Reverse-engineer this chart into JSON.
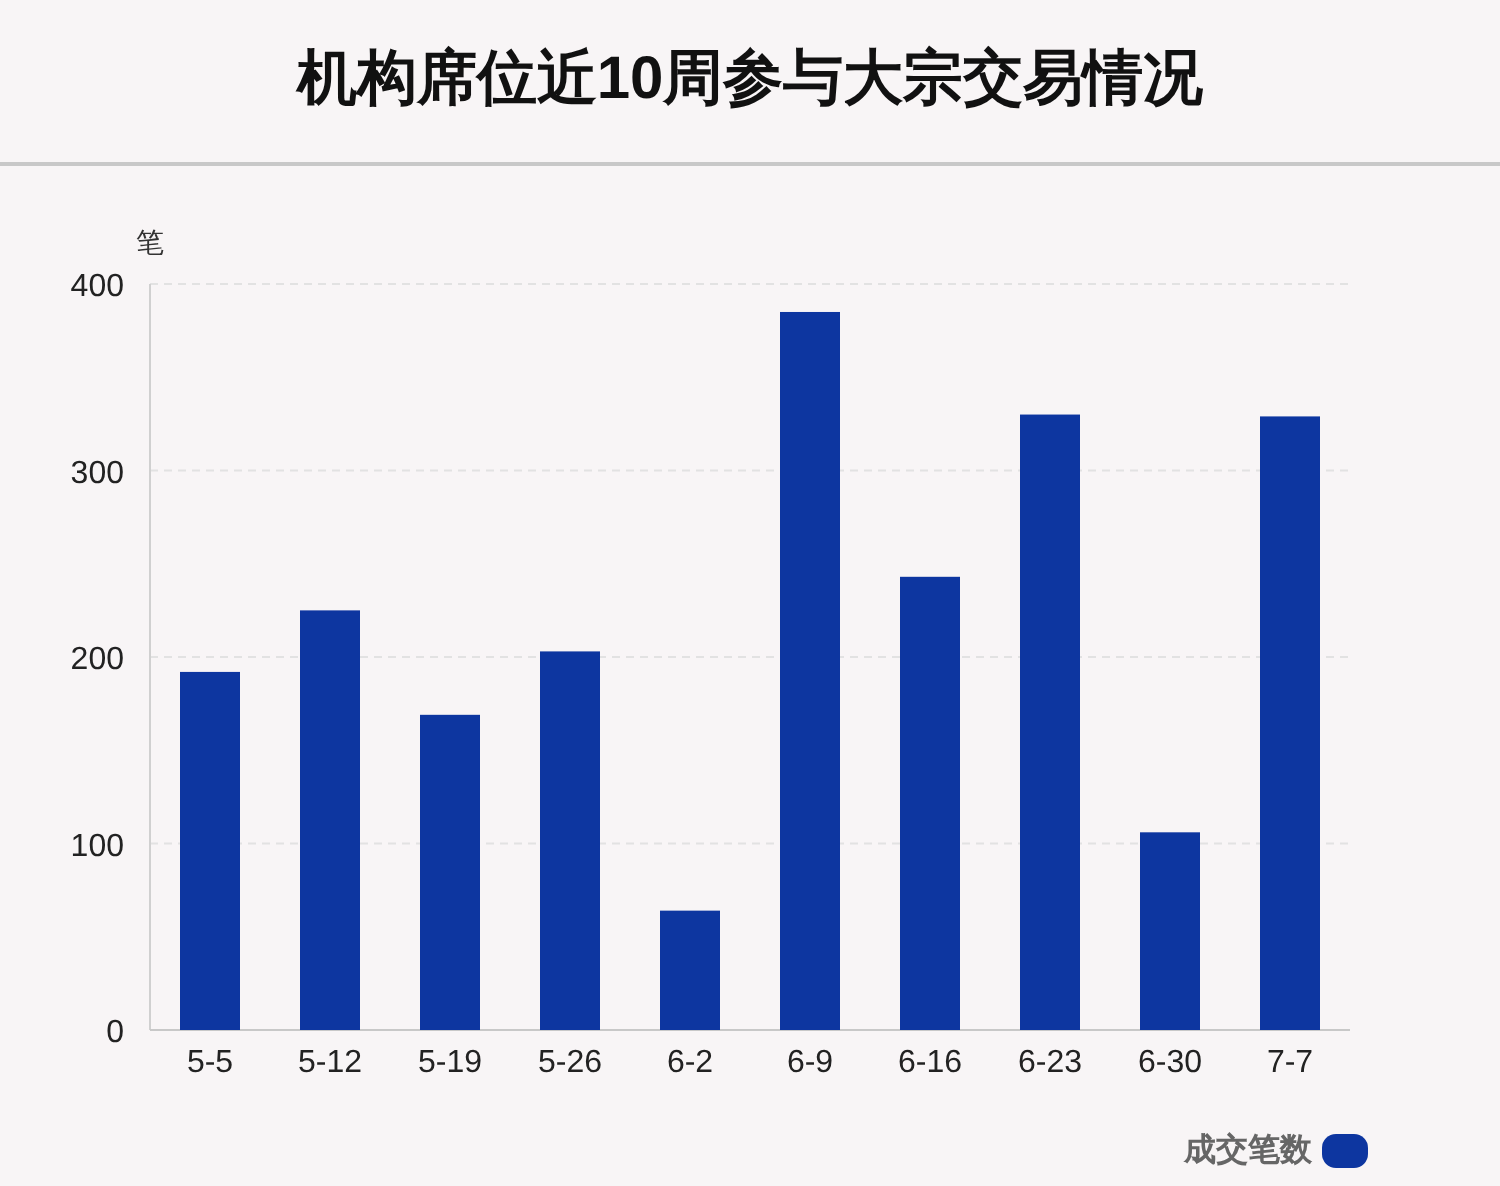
{
  "chart_data": {
    "type": "bar",
    "title": "机构席位近10周参与大宗交易情况",
    "ylabel": "笔",
    "categories": [
      "5-5",
      "5-12",
      "5-19",
      "5-26",
      "6-2",
      "6-9",
      "6-16",
      "6-23",
      "6-30",
      "7-7"
    ],
    "series": [
      {
        "name": "成交笔数",
        "color": "#0d36a0",
        "values": [
          192,
          225,
          169,
          203,
          64,
          385,
          243,
          330,
          106,
          329
        ]
      }
    ],
    "ylim": [
      0,
      400
    ],
    "yticks": [
      0,
      100,
      200,
      300,
      400
    ],
    "grid": "y",
    "legend": "bottom right"
  }
}
